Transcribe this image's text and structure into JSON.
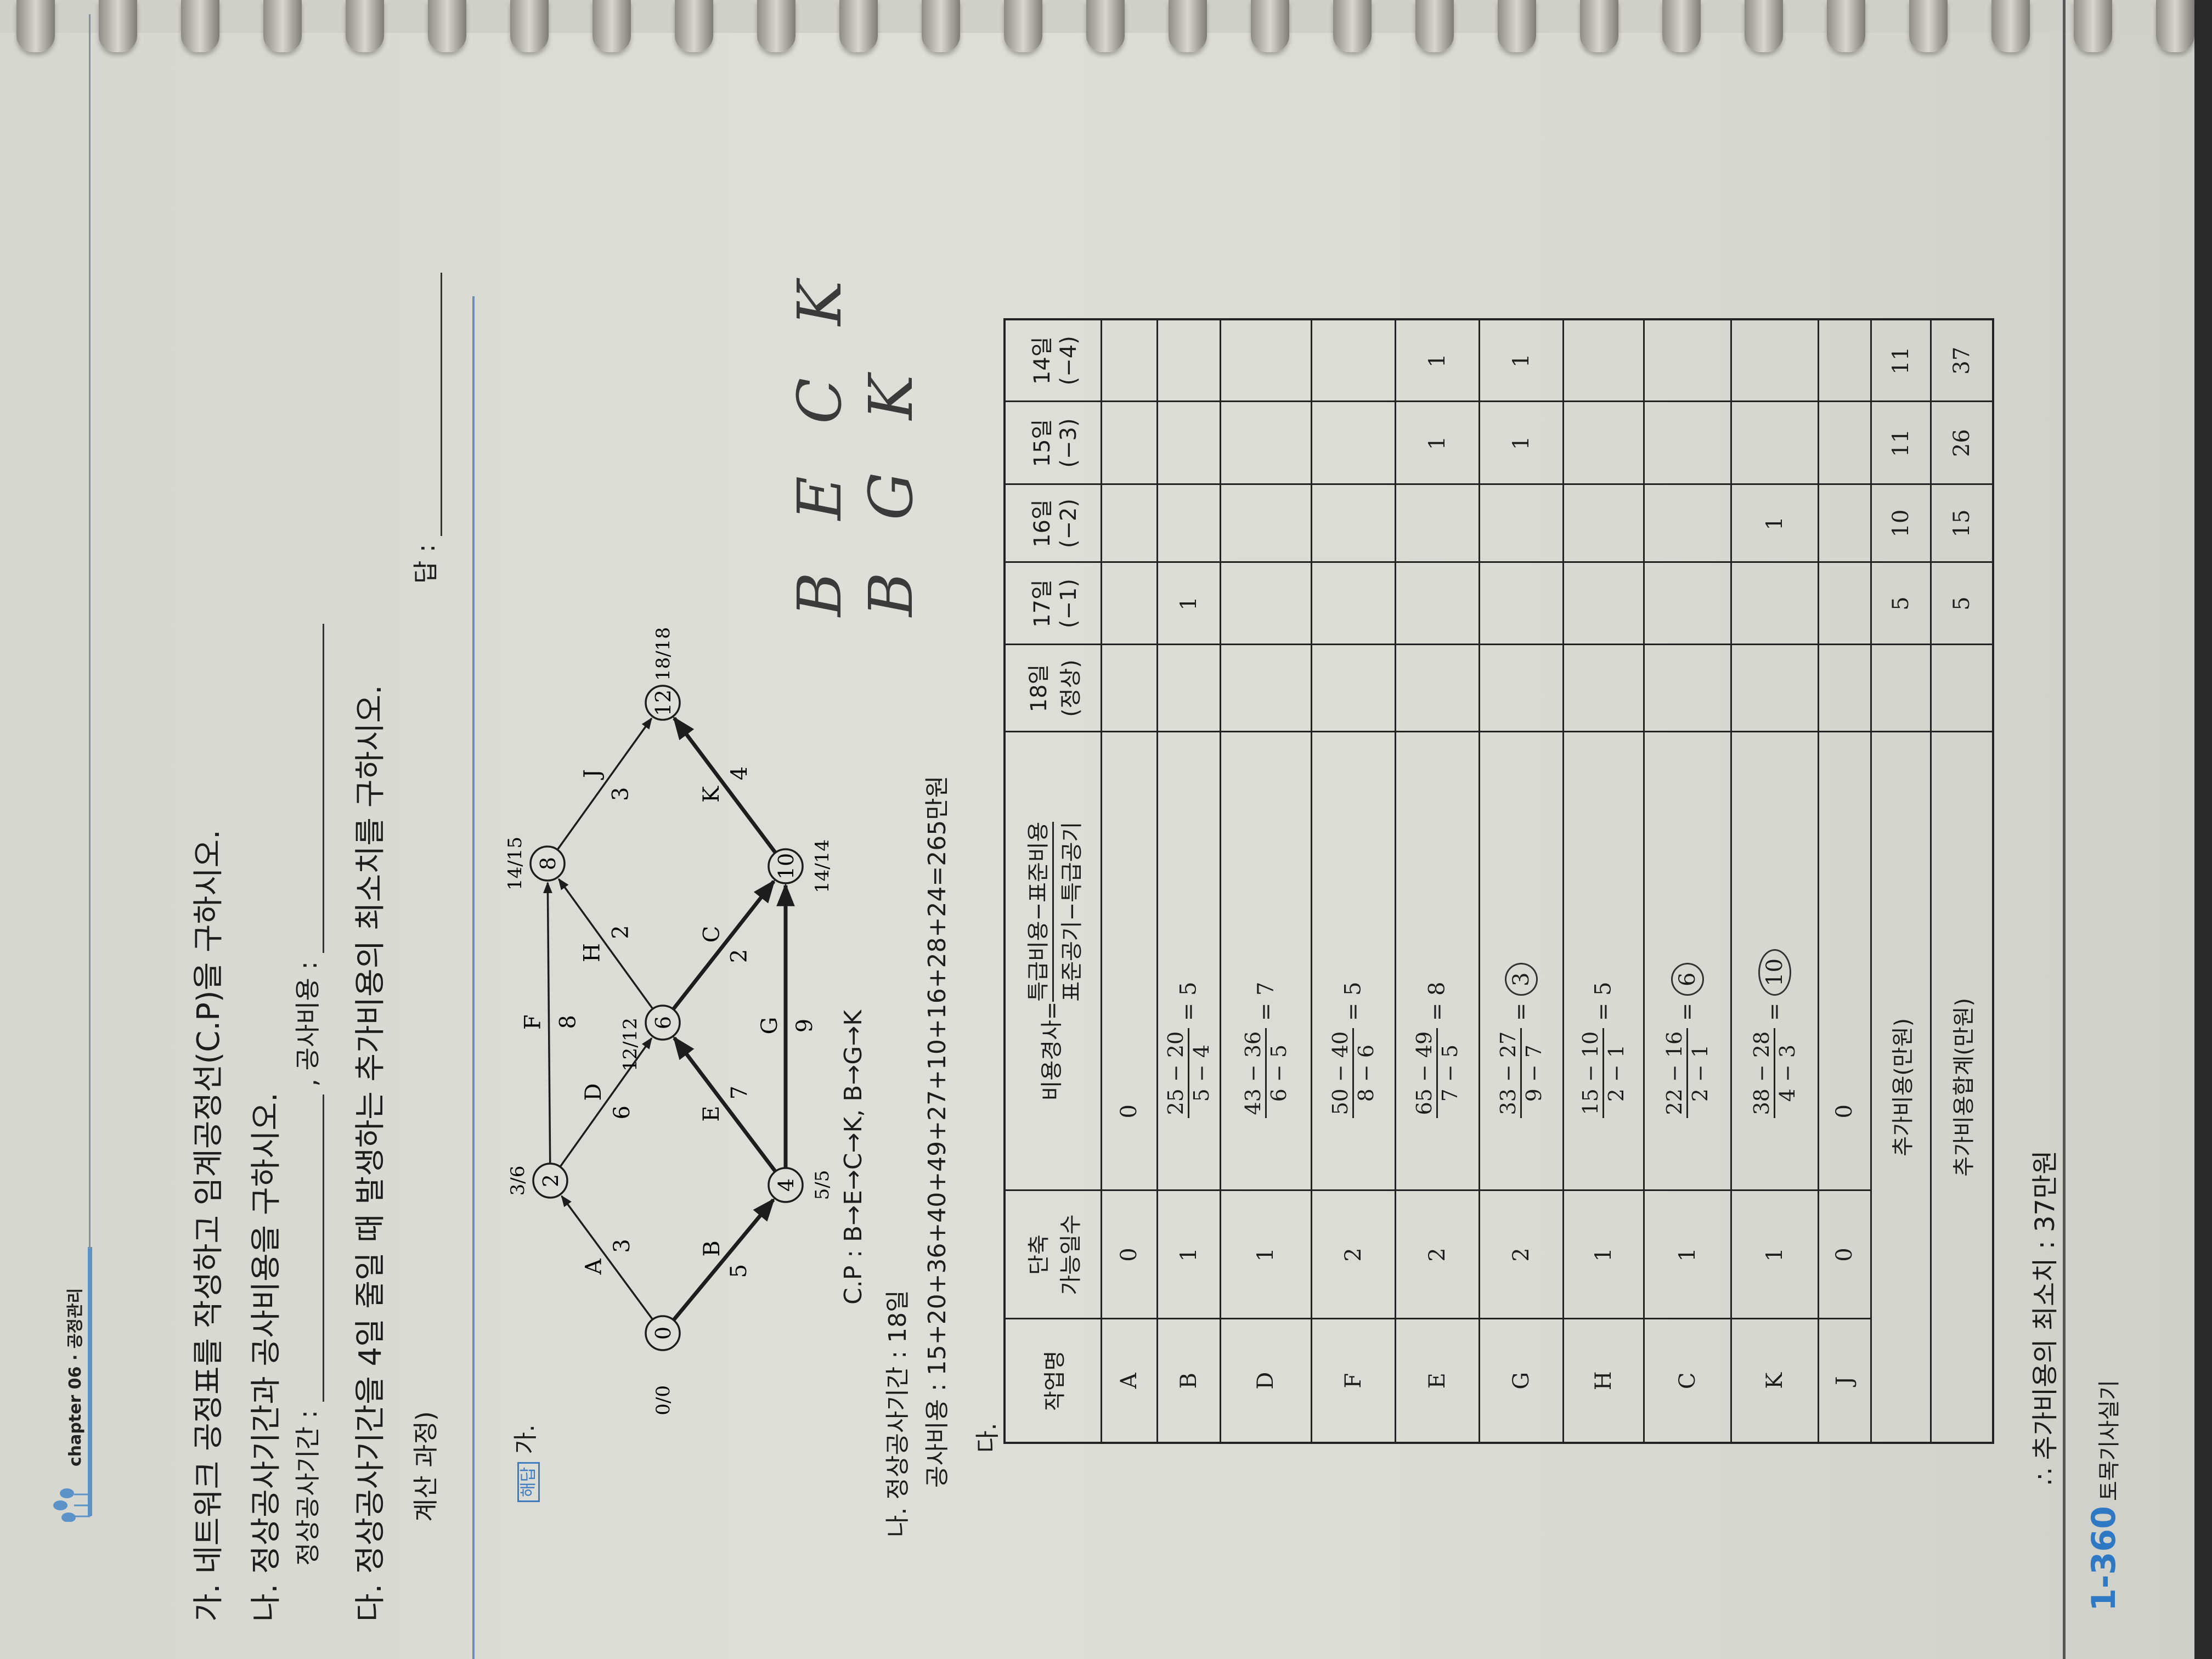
{
  "header": {
    "chapter": "chapter 06 · 공정관리"
  },
  "questions": {
    "q1": "가. 네트워크 공정표를 작성하고 임계공정선(C.P)을 구하시오.",
    "q2": "나. 정상공사기간과 공사비용을 구하시오.",
    "q2_duration_label": "정상공사기간 :",
    "q2_cost_label": ", 공사비용 :",
    "q3": "다. 정상공사기간을 4일 줄일 때 발생하는 추가비용의 최소치를 구하시오.",
    "q3_work_label": "계산 과정)",
    "q3_answer_label": "답 :"
  },
  "solution": {
    "badge": "해답",
    "part1_label": "가.",
    "network": {
      "nodes": [
        {
          "id": "0",
          "times": "0/0"
        },
        {
          "id": "2",
          "times": "3/6"
        },
        {
          "id": "4",
          "times": "5/5"
        },
        {
          "id": "6",
          "times": "12/12"
        },
        {
          "id": "8",
          "times": "14/15"
        },
        {
          "id": "10",
          "times": "14/14"
        },
        {
          "id": "12",
          "times": "18/18"
        }
      ],
      "edges": [
        {
          "from": "0",
          "to": "2",
          "activity": "A",
          "duration": "3",
          "critical": false
        },
        {
          "from": "0",
          "to": "4",
          "activity": "B",
          "duration": "5",
          "critical": true
        },
        {
          "from": "2",
          "to": "6",
          "activity": "D",
          "duration": "6",
          "critical": false
        },
        {
          "from": "2",
          "to": "8",
          "activity": "F",
          "duration": "8",
          "critical": false
        },
        {
          "from": "4",
          "to": "6",
          "activity": "E",
          "duration": "7",
          "critical": true
        },
        {
          "from": "4",
          "to": "10",
          "activity": "G",
          "duration": "9",
          "critical": true
        },
        {
          "from": "6",
          "to": "8",
          "activity": "H",
          "duration": "2",
          "critical": false
        },
        {
          "from": "6",
          "to": "10",
          "activity": "C",
          "duration": "2",
          "critical": true
        },
        {
          "from": "8",
          "to": "12",
          "activity": "J",
          "duration": "3",
          "critical": false
        },
        {
          "from": "10",
          "to": "12",
          "activity": "K",
          "duration": "4",
          "critical": true
        }
      ]
    },
    "cp": "C.P : B→E→C→K, B→G→K",
    "part2_label": "나.",
    "duration": "정상공사기간 : 18일",
    "cost": "공사비용 : 15+20+36+40+49+27+10+16+28+24=265만원",
    "part3_label": "다.",
    "table": {
      "headers": {
        "name": "작업명",
        "days_line1": "단축",
        "days_line2": "가능일수",
        "slope_prefix": "비용경사=",
        "slope_num": "특급비용−표준비용",
        "slope_den": "표준공기−특급공기",
        "periods": [
          {
            "day": "18일",
            "note": "(정상)"
          },
          {
            "day": "17일",
            "note": "(−1)"
          },
          {
            "day": "16일",
            "note": "(−2)"
          },
          {
            "day": "15일",
            "note": "(−3)"
          },
          {
            "day": "14일",
            "note": "(−4)"
          }
        ]
      },
      "rows": [
        {
          "name": "A",
          "days": "0",
          "slope_plain": "0",
          "cells": [
            "",
            "",
            "",
            "",
            ""
          ]
        },
        {
          "name": "B",
          "days": "1",
          "num": "25 − 20",
          "den": "5 − 4",
          "result": "5",
          "circled": false,
          "cells": [
            "",
            "1",
            "",
            "",
            ""
          ]
        },
        {
          "name": "D",
          "days": "1",
          "num": "43 − 36",
          "den": "6 − 5",
          "result": "7",
          "circled": false,
          "cells": [
            "",
            "",
            "",
            "",
            ""
          ]
        },
        {
          "name": "F",
          "days": "2",
          "num": "50 − 40",
          "den": "8 − 6",
          "result": "5",
          "circled": false,
          "cells": [
            "",
            "",
            "",
            "",
            ""
          ]
        },
        {
          "name": "E",
          "days": "2",
          "num": "65 − 49",
          "den": "7 − 5",
          "result": "8",
          "circled": false,
          "cells": [
            "",
            "",
            "",
            "1",
            "1"
          ]
        },
        {
          "name": "G",
          "days": "2",
          "num": "33 − 27",
          "den": "9 − 7",
          "result": "3",
          "circled": true,
          "cells": [
            "",
            "",
            "",
            "1",
            "1"
          ]
        },
        {
          "name": "H",
          "days": "1",
          "num": "15 − 10",
          "den": "2 − 1",
          "result": "5",
          "circled": false,
          "cells": [
            "",
            "",
            "",
            "",
            ""
          ]
        },
        {
          "name": "C",
          "days": "1",
          "num": "22 − 16",
          "den": "2 − 1",
          "result": "6",
          "circled": true,
          "cells": [
            "",
            "",
            "",
            "",
            ""
          ]
        },
        {
          "name": "K",
          "days": "1",
          "num": "38 − 28",
          "den": "4 − 3",
          "result": "10",
          "circled": true,
          "cells": [
            "",
            "",
            "1",
            "",
            ""
          ]
        },
        {
          "name": "J",
          "days": "0",
          "slope_plain": "0",
          "cells": [
            "",
            "",
            "",
            "",
            ""
          ]
        }
      ],
      "footer": [
        {
          "label": "추가비용(만원)",
          "cells": [
            "",
            "5",
            "10",
            "11",
            "11"
          ]
        },
        {
          "label": "추가비용합계(만원)",
          "cells": [
            "",
            "5",
            "15",
            "26",
            "37"
          ]
        }
      ]
    },
    "conclusion": "∴ 추가비용의 최소치 : 37만원"
  },
  "handwriting": {
    "line1": "B E C K",
    "line2": "B G K"
  },
  "footer": {
    "page_number": "1-360",
    "book_title": "토목기사실기"
  },
  "colors": {
    "accent": "#3f7cc0",
    "paper": "#dcddd6",
    "ink": "#1d1d1d"
  }
}
